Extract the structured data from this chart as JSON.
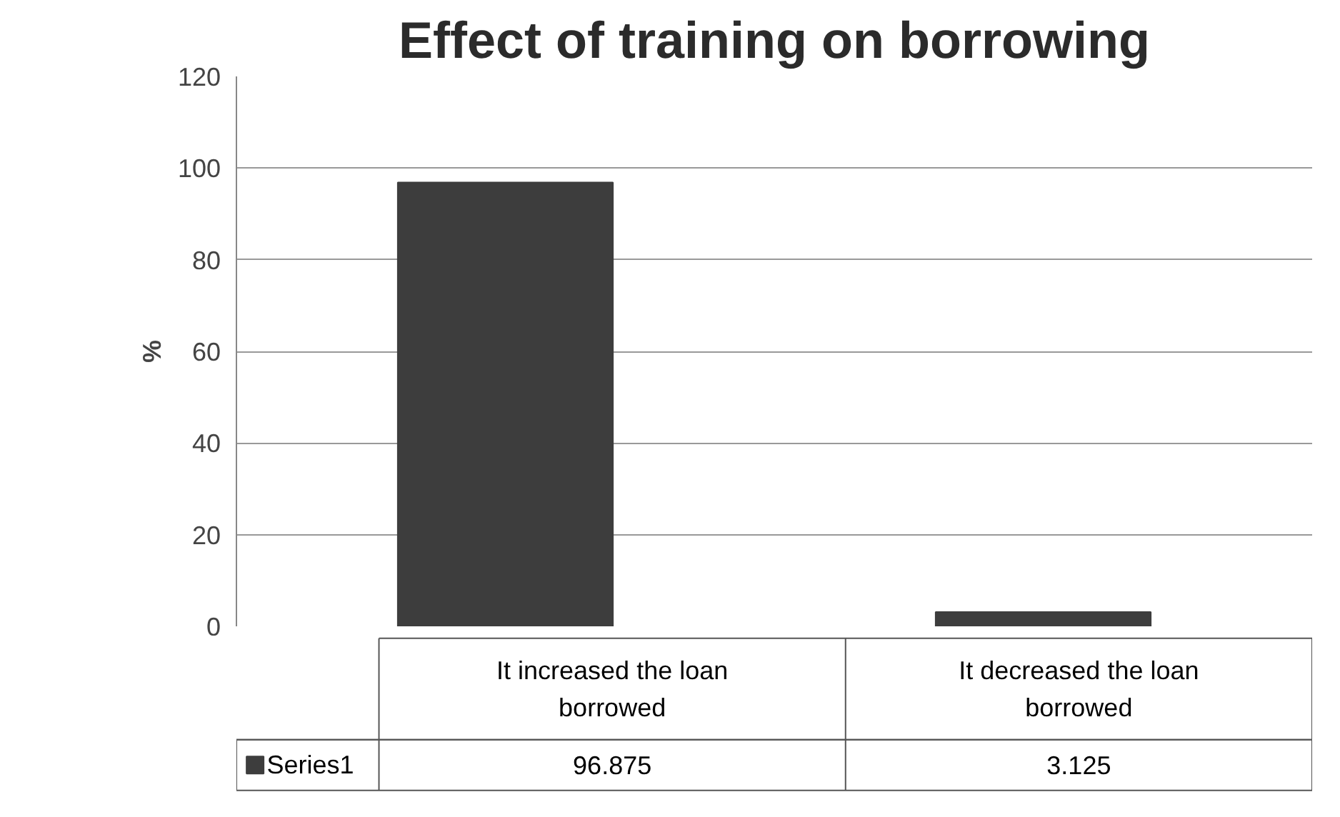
{
  "chart_data": {
    "type": "bar",
    "title": "Effect of training on borrowing",
    "ylabel": "%",
    "categories": [
      "It increased the loan\nborrowed",
      "It decreased the loan\nborrowed"
    ],
    "series": [
      {
        "name": "Series1",
        "color": "#3d3d3d",
        "values": [
          96.875,
          3.125
        ]
      }
    ],
    "ylim": [
      0,
      120
    ],
    "yticks": [
      0,
      20,
      40,
      60,
      80,
      100,
      120
    ],
    "grid": "y",
    "data_labels": true
  }
}
